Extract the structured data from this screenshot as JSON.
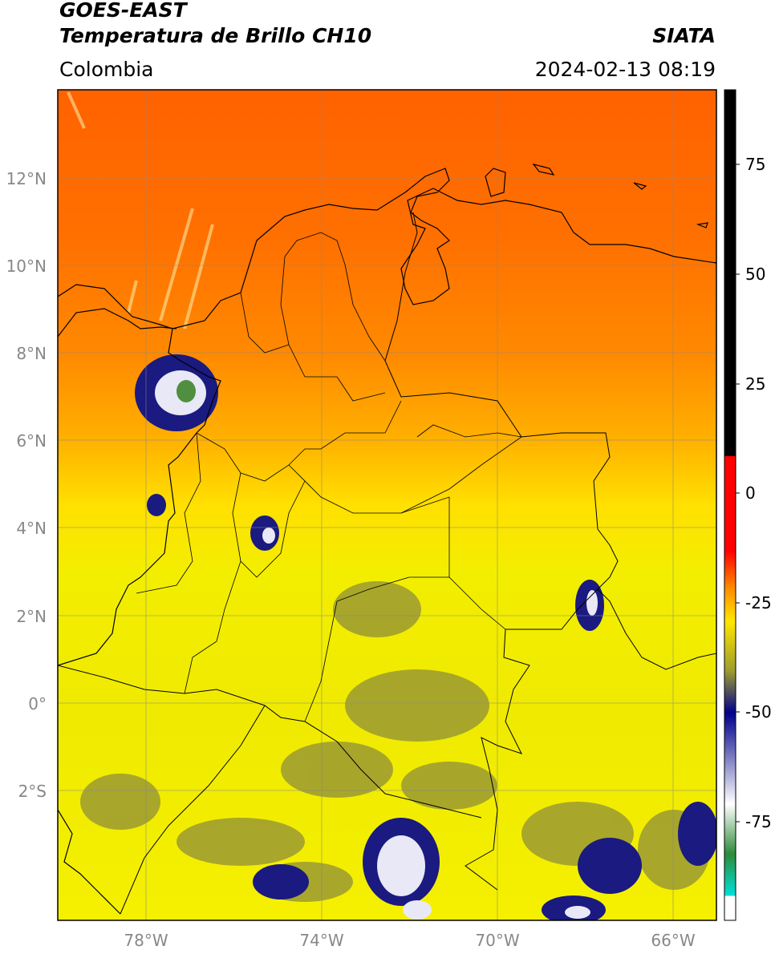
{
  "header": {
    "title_line1": "GOES-EAST",
    "title_line2": "Temperatura de Brillo CH10",
    "region": "Colombia",
    "brand": "SIATA",
    "datetime": "2024-02-13 08:19"
  },
  "map": {
    "lat_labels": [
      "12°N",
      "10°N",
      "8°N",
      "6°N",
      "4°N",
      "2°N",
      "0°",
      "2°S"
    ],
    "lon_labels": [
      "78°W",
      "74°W",
      "70°W",
      "66°W"
    ],
    "colors": {
      "warm_top": "#ff6a00",
      "orange": "#ff8c00",
      "yellow": "#f2ee00",
      "olive": "#9a9a33",
      "deep_blue": "#1a1a80",
      "white_cloud": "#f0f0f8",
      "green_core": "#4f8f3f"
    }
  },
  "colorbar": {
    "ticks": [
      "75",
      "50",
      "25",
      "0",
      "-25",
      "-50",
      "-75"
    ],
    "stops": [
      "#000000",
      "#ff0000",
      "#ffff00",
      "#888844",
      "#00008b",
      "#ffffff",
      "#2e8b57",
      "#00e5e5",
      "#ffffff"
    ]
  }
}
